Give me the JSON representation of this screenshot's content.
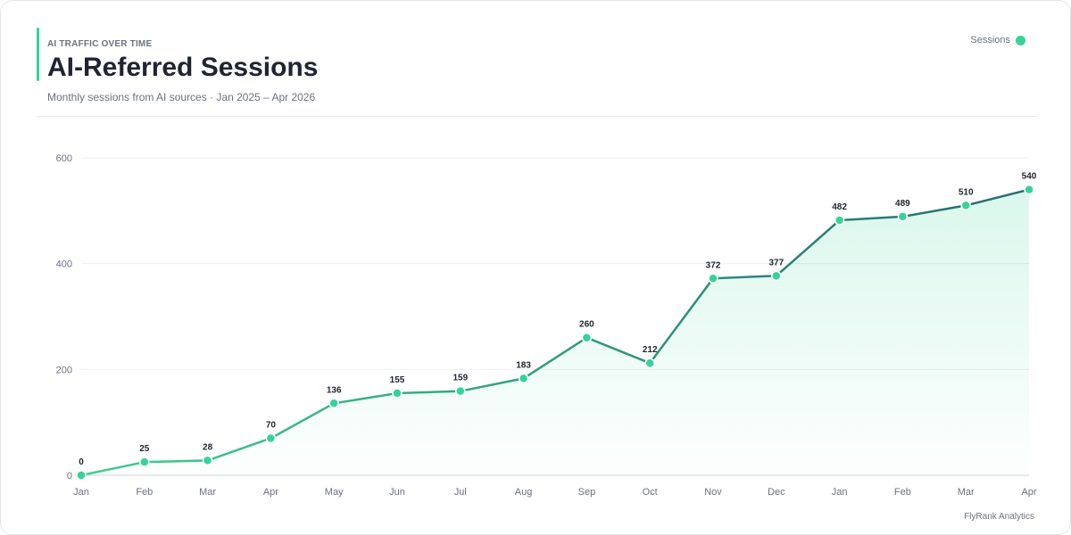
{
  "header": {
    "eyebrow": "AI TRAFFIC OVER TIME",
    "title": "AI-Referred Sessions",
    "subtitle": "Monthly sessions from AI sources · Jan 2025 – Apr 2026"
  },
  "legend": {
    "label": "Sessions"
  },
  "footer": {
    "credit": "FlyRank Analytics"
  },
  "colors": {
    "line_start": "#3ecf8e",
    "line_end": "#236b6e",
    "marker": "#34d399",
    "area": "#34d399",
    "grid": "#eceef1",
    "baseline": "#d1d5db"
  },
  "chart_data": {
    "type": "line",
    "title": "AI-Referred Sessions",
    "subtitle": "Monthly sessions from AI sources · Jan 2025 – Apr 2026",
    "categories": [
      "Jan",
      "Feb",
      "Mar",
      "Apr",
      "May",
      "Jun",
      "Jul",
      "Aug",
      "Sep",
      "Oct",
      "Nov",
      "Dec",
      "Jan",
      "Feb",
      "Mar",
      "Apr"
    ],
    "series": [
      {
        "name": "Sessions",
        "values": [
          0,
          25,
          28,
          70,
          136,
          155,
          159,
          183,
          260,
          212,
          372,
          377,
          482,
          489,
          510,
          540
        ]
      }
    ],
    "ylim": [
      0,
      600
    ],
    "yticks": [
      0,
      200,
      400,
      600
    ],
    "xlabel": "",
    "ylabel": "",
    "grid": true,
    "legend_position": "top-right",
    "area_fill": true,
    "data_labels": true
  }
}
